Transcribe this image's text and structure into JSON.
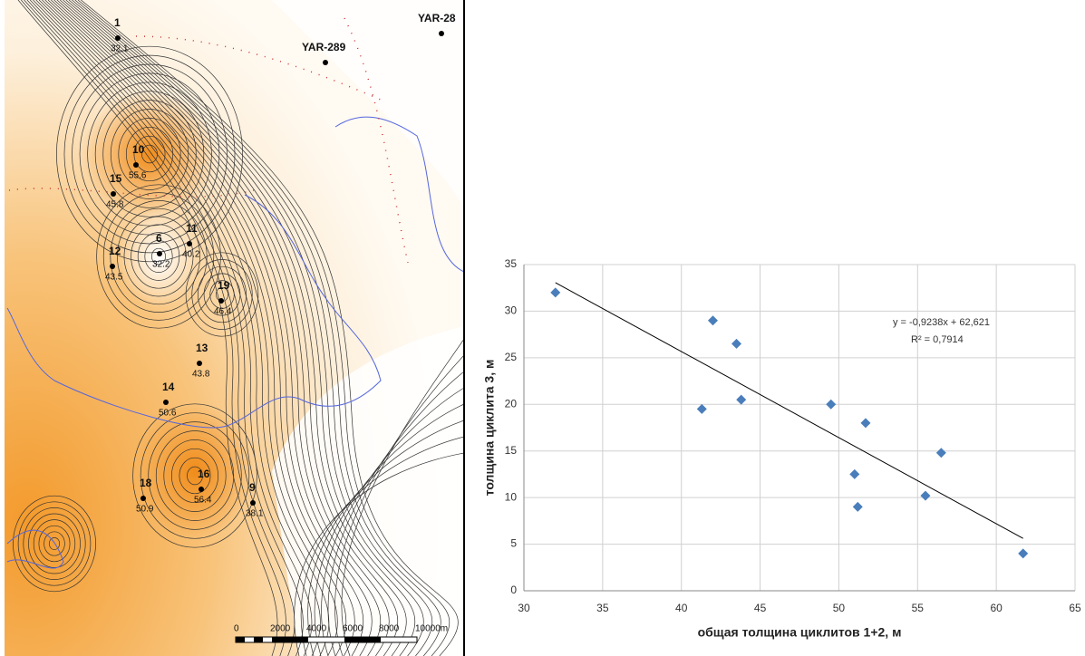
{
  "map": {
    "wells": [
      {
        "label": "1",
        "value": 32.1
      },
      {
        "label": "YAR-289"
      },
      {
        "label": "YAR-28"
      },
      {
        "label": "10",
        "value": 55.6
      },
      {
        "label": "15",
        "value": 45.8
      },
      {
        "label": "6",
        "value": 32.2
      },
      {
        "label": "11",
        "value": 40.2
      },
      {
        "label": "12",
        "value": 43.5
      },
      {
        "label": "19",
        "value": 46.4
      },
      {
        "label": "13",
        "value": 43.8
      },
      {
        "label": "14",
        "value": 50.6
      },
      {
        "label": "16",
        "value": 56.4
      },
      {
        "label": "9",
        "value": 38.1
      },
      {
        "label": "18",
        "value": 50.9
      }
    ],
    "scale_labels": [
      "0",
      "2000",
      "4000",
      "6000",
      "8000",
      "10000m"
    ]
  },
  "chart_data": {
    "type": "scatter",
    "x_label": "общая толщина циклитов 1+2, м",
    "y_label": "толщина циклита 3, м",
    "x": [
      32,
      42,
      43.5,
      43.8,
      41.3,
      49.5,
      51.7,
      56.5,
      51,
      55.5,
      51.2,
      61.7
    ],
    "series": [
      {
        "color": "#4a7ebb",
        "values": [
          32,
          29,
          26.5,
          20.5,
          19.5,
          20,
          18,
          14.8,
          12.5,
          10.2,
          9,
          4
        ]
      }
    ],
    "trendline": {
      "slope": -0.9238,
      "intercept": 62.621,
      "equation": "y = -0,9238x + 62,621",
      "r2": "R² = 0,7914"
    },
    "xlim": [
      30,
      65
    ],
    "xticks": [
      30,
      35,
      40,
      45,
      50,
      55,
      60,
      65
    ],
    "ylim": [
      0,
      35
    ],
    "yticks": [
      0,
      5,
      10,
      15,
      20,
      25,
      30,
      35
    ],
    "grid": true
  }
}
